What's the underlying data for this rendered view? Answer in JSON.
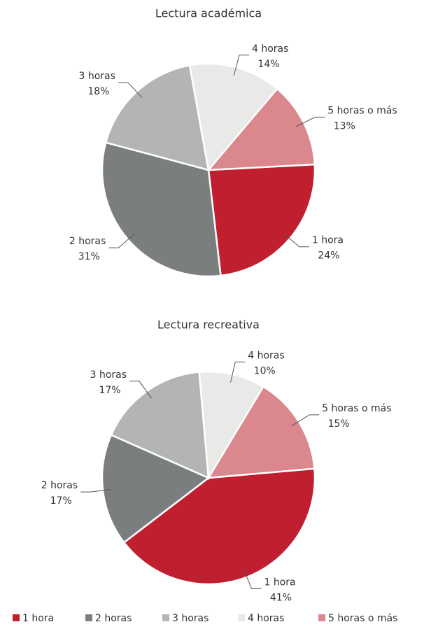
{
  "chart_data": [
    {
      "type": "pie",
      "title": "Lectura académica",
      "categories": [
        "1 hora",
        "2 horas",
        "3 horas",
        "4 horas",
        "5 horas o más"
      ],
      "values": [
        24,
        31,
        18,
        14,
        13
      ],
      "value_labels": [
        "24%",
        "31%",
        "18%",
        "14%",
        "13%"
      ],
      "colors": [
        "#c01f2f",
        "#7b7e7e",
        "#b3b5b5",
        "#e9e9e8",
        "#da878d"
      ]
    },
    {
      "type": "pie",
      "title": "Lectura recreativa",
      "categories": [
        "1 hora",
        "2 horas",
        "3 horas",
        "4 horas",
        "5 horas o más"
      ],
      "values": [
        41,
        17,
        17,
        10,
        15
      ],
      "value_labels": [
        "41%",
        "17%",
        "17%",
        "10%",
        "15%"
      ],
      "colors": [
        "#c01f2f",
        "#7b7e7e",
        "#b3b5b5",
        "#e9e9e8",
        "#da878d"
      ]
    }
  ]
}
